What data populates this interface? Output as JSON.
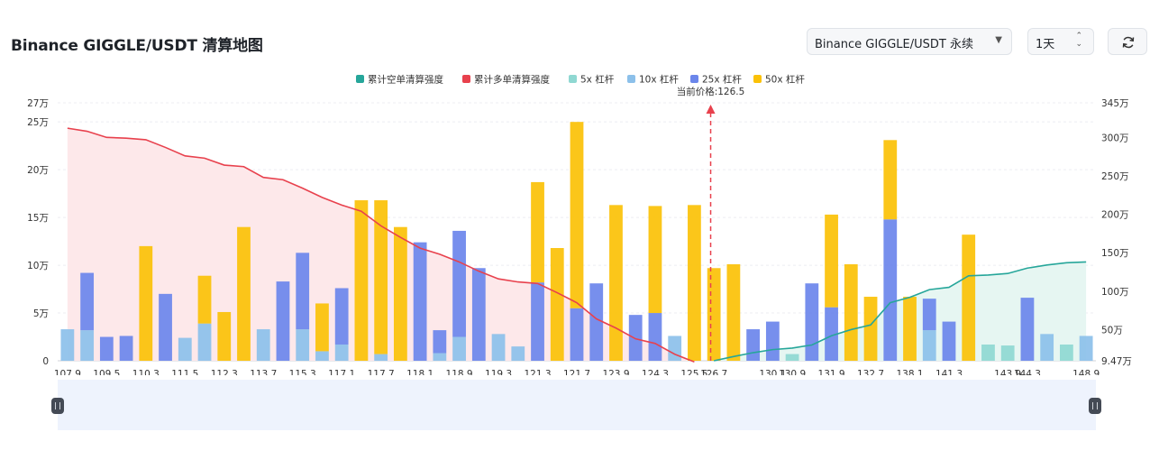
{
  "header": {
    "title": "Binance GIGGLE/USDT 清算地图",
    "pair_select": "Binance GIGGLE/USDT 永续",
    "period_select": "1天",
    "refresh_icon": "refresh-icon"
  },
  "colors": {
    "short_cum": "#26a69a",
    "long_cum": "#e8414d",
    "lev5": "#8fd8d2",
    "lev10": "#8cc0ea",
    "lev25": "#6b86eb",
    "lev50": "#fbc107",
    "long_fill": "#fde8ea",
    "short_fill": "#e6f6f2"
  },
  "chart_data": {
    "type": "bar",
    "current_price_label": "当前价格:126.5",
    "current_price": 126.5,
    "legend": [
      "累计空单清算强度",
      "累计多单清算强度",
      "5x 杠杆",
      "10x 杠杆",
      "25x 杠杆",
      "50x 杠杆"
    ],
    "x_tick_labels": [
      "107.9",
      "109.5",
      "110.3",
      "111.5",
      "112.3",
      "113.7",
      "115.3",
      "117.1",
      "117.7",
      "118.1",
      "118.9",
      "119.3",
      "121.3",
      "121.7",
      "123.9",
      "124.3",
      "125.5",
      "126.7",
      "130.1",
      "130.9",
      "131.9",
      "132.7",
      "138.1",
      "141.3",
      "143.9",
      "144.3",
      "148.9"
    ],
    "y_left_ticks": [
      "0",
      "5万",
      "10万",
      "15万",
      "20万",
      "25万",
      "27万"
    ],
    "y_left_values": [
      0,
      50000,
      100000,
      150000,
      200000,
      250000,
      270000
    ],
    "y_right_ticks": [
      "9.47万",
      "50万",
      "100万",
      "150万",
      "200万",
      "250万",
      "300万",
      "345万"
    ],
    "y_right_values": [
      94700,
      500000,
      1000000,
      1500000,
      2000000,
      2500000,
      3000000,
      3450000
    ],
    "bars": [
      {
        "x": 107.9,
        "lev5": 0,
        "lev10": 33000,
        "lev25": 0,
        "lev50": 0
      },
      {
        "x": 108.7,
        "lev5": 0,
        "lev10": 32000,
        "lev25": 60000,
        "lev50": 0
      },
      {
        "x": 109.5,
        "lev5": 0,
        "lev10": 0,
        "lev25": 25000,
        "lev50": 0
      },
      {
        "x": 109.9,
        "lev5": 0,
        "lev10": 0,
        "lev25": 26000,
        "lev50": 0
      },
      {
        "x": 110.3,
        "lev5": 0,
        "lev10": 0,
        "lev25": 0,
        "lev50": 120000
      },
      {
        "x": 110.9,
        "lev5": 0,
        "lev10": 0,
        "lev25": 70000,
        "lev50": 0
      },
      {
        "x": 111.5,
        "lev5": 0,
        "lev10": 24000,
        "lev25": 0,
        "lev50": 0
      },
      {
        "x": 111.9,
        "lev5": 0,
        "lev10": 39000,
        "lev25": 0,
        "lev50": 50000
      },
      {
        "x": 112.3,
        "lev5": 0,
        "lev10": 0,
        "lev25": 0,
        "lev50": 51000
      },
      {
        "x": 113.0,
        "lev5": 0,
        "lev10": 0,
        "lev25": 0,
        "lev50": 140000
      },
      {
        "x": 113.7,
        "lev5": 0,
        "lev10": 33000,
        "lev25": 0,
        "lev50": 0
      },
      {
        "x": 114.5,
        "lev5": 0,
        "lev10": 0,
        "lev25": 83000,
        "lev50": 0
      },
      {
        "x": 115.3,
        "lev5": 0,
        "lev10": 33000,
        "lev25": 80000,
        "lev50": 0
      },
      {
        "x": 116.2,
        "lev5": 0,
        "lev10": 10000,
        "lev25": 0,
        "lev50": 50000
      },
      {
        "x": 117.1,
        "lev5": 0,
        "lev10": 17000,
        "lev25": 59000,
        "lev50": 0
      },
      {
        "x": 117.4,
        "lev5": 0,
        "lev10": 0,
        "lev25": 0,
        "lev50": 168000
      },
      {
        "x": 117.7,
        "lev5": 0,
        "lev10": 7000,
        "lev25": 0,
        "lev50": 161000
      },
      {
        "x": 117.9,
        "lev5": 0,
        "lev10": 0,
        "lev25": 0,
        "lev50": 140000
      },
      {
        "x": 118.1,
        "lev5": 0,
        "lev10": 0,
        "lev25": 124000,
        "lev50": 0
      },
      {
        "x": 118.5,
        "lev5": 0,
        "lev10": 8000,
        "lev25": 24000,
        "lev50": 0
      },
      {
        "x": 118.9,
        "lev5": 0,
        "lev10": 25000,
        "lev25": 111000,
        "lev50": 0
      },
      {
        "x": 119.1,
        "lev5": 0,
        "lev10": 0,
        "lev25": 97000,
        "lev50": 0
      },
      {
        "x": 119.3,
        "lev5": 0,
        "lev10": 28000,
        "lev25": 0,
        "lev50": 0
      },
      {
        "x": 120.3,
        "lev5": 0,
        "lev10": 15000,
        "lev25": 0,
        "lev50": 0
      },
      {
        "x": 121.3,
        "lev5": 0,
        "lev10": 0,
        "lev25": 82000,
        "lev50": 105000
      },
      {
        "x": 121.5,
        "lev5": 0,
        "lev10": 0,
        "lev25": 0,
        "lev50": 118000
      },
      {
        "x": 121.7,
        "lev5": 0,
        "lev10": 0,
        "lev25": 55000,
        "lev50": 195000
      },
      {
        "x": 122.8,
        "lev5": 0,
        "lev10": 0,
        "lev25": 81000,
        "lev50": 0
      },
      {
        "x": 123.9,
        "lev5": 0,
        "lev10": 0,
        "lev25": 0,
        "lev50": 163000
      },
      {
        "x": 124.1,
        "lev5": 0,
        "lev10": 0,
        "lev25": 48000,
        "lev50": 0
      },
      {
        "x": 124.3,
        "lev5": 0,
        "lev10": 0,
        "lev25": 50000,
        "lev50": 112000
      },
      {
        "x": 124.9,
        "lev5": 0,
        "lev10": 26000,
        "lev25": 0,
        "lev50": 0
      },
      {
        "x": 125.5,
        "lev5": 0,
        "lev10": 0,
        "lev25": 0,
        "lev50": 163000
      },
      {
        "x": 126.7,
        "lev5": 0,
        "lev10": 0,
        "lev25": 0,
        "lev50": 97000
      },
      {
        "x": 128.4,
        "lev5": 0,
        "lev10": 0,
        "lev25": 0,
        "lev50": 101000
      },
      {
        "x": 129.3,
        "lev5": 0,
        "lev10": 0,
        "lev25": 33000,
        "lev50": 0
      },
      {
        "x": 130.1,
        "lev5": 0,
        "lev10": 0,
        "lev25": 41000,
        "lev50": 0
      },
      {
        "x": 130.9,
        "lev5": 7000,
        "lev10": 0,
        "lev25": 0,
        "lev50": 0
      },
      {
        "x": 131.4,
        "lev5": 0,
        "lev10": 0,
        "lev25": 81000,
        "lev50": 0
      },
      {
        "x": 131.9,
        "lev5": 0,
        "lev10": 0,
        "lev25": 56000,
        "lev50": 97000
      },
      {
        "x": 132.3,
        "lev5": 0,
        "lev10": 0,
        "lev25": 0,
        "lev50": 101000
      },
      {
        "x": 132.7,
        "lev5": 0,
        "lev10": 0,
        "lev25": 0,
        "lev50": 67000
      },
      {
        "x": 135.4,
        "lev5": 0,
        "lev10": 0,
        "lev25": 148000,
        "lev50": 83000
      },
      {
        "x": 138.1,
        "lev5": 0,
        "lev10": 0,
        "lev25": 0,
        "lev50": 67000
      },
      {
        "x": 139.7,
        "lev5": 0,
        "lev10": 32000,
        "lev25": 33000,
        "lev50": 0
      },
      {
        "x": 141.3,
        "lev5": 0,
        "lev10": 0,
        "lev25": 41000,
        "lev50": 0
      },
      {
        "x": 142.6,
        "lev5": 0,
        "lev10": 0,
        "lev25": 0,
        "lev50": 132000
      },
      {
        "x": 143.2,
        "lev5": 17000,
        "lev10": 0,
        "lev25": 0,
        "lev50": 0
      },
      {
        "x": 143.9,
        "lev5": 16000,
        "lev10": 0,
        "lev25": 0,
        "lev50": 0
      },
      {
        "x": 144.3,
        "lev5": 0,
        "lev10": 0,
        "lev25": 66000,
        "lev50": 0
      },
      {
        "x": 146.6,
        "lev5": 0,
        "lev10": 28000,
        "lev25": 0,
        "lev50": 0
      },
      {
        "x": 148.3,
        "lev5": 17000,
        "lev10": 0,
        "lev25": 0,
        "lev50": 0
      },
      {
        "x": 148.9,
        "lev5": 0,
        "lev10": 26000,
        "lev25": 0,
        "lev50": 0
      }
    ],
    "long_cumulative": [
      [
        107.9,
        3120000
      ],
      [
        108.7,
        3080000
      ],
      [
        109.5,
        3000000
      ],
      [
        109.9,
        2990000
      ],
      [
        110.3,
        2970000
      ],
      [
        110.9,
        2870000
      ],
      [
        111.5,
        2760000
      ],
      [
        111.9,
        2730000
      ],
      [
        112.3,
        2640000
      ],
      [
        113.0,
        2620000
      ],
      [
        113.7,
        2480000
      ],
      [
        114.5,
        2450000
      ],
      [
        115.3,
        2340000
      ],
      [
        116.2,
        2220000
      ],
      [
        117.1,
        2120000
      ],
      [
        117.4,
        2040000
      ],
      [
        117.7,
        1850000
      ],
      [
        117.9,
        1700000
      ],
      [
        118.1,
        1560000
      ],
      [
        118.5,
        1480000
      ],
      [
        118.9,
        1380000
      ],
      [
        119.1,
        1260000
      ],
      [
        119.3,
        1160000
      ],
      [
        120.3,
        1120000
      ],
      [
        121.3,
        1100000
      ],
      [
        121.5,
        980000
      ],
      [
        121.7,
        850000
      ],
      [
        122.8,
        640000
      ],
      [
        123.9,
        520000
      ],
      [
        124.1,
        380000
      ],
      [
        124.3,
        320000
      ],
      [
        124.9,
        180000
      ],
      [
        125.5,
        80000
      ]
    ],
    "short_cumulative": [
      [
        126.7,
        94700
      ],
      [
        128.4,
        150000
      ],
      [
        129.3,
        200000
      ],
      [
        130.1,
        240000
      ],
      [
        130.9,
        260000
      ],
      [
        131.4,
        300000
      ],
      [
        131.9,
        420000
      ],
      [
        132.3,
        500000
      ],
      [
        132.7,
        560000
      ],
      [
        135.4,
        850000
      ],
      [
        138.1,
        920000
      ],
      [
        139.7,
        1020000
      ],
      [
        141.3,
        1050000
      ],
      [
        142.6,
        1200000
      ],
      [
        143.2,
        1210000
      ],
      [
        143.9,
        1230000
      ],
      [
        144.3,
        1300000
      ],
      [
        146.6,
        1340000
      ],
      [
        148.3,
        1370000
      ],
      [
        148.9,
        1380000
      ]
    ]
  }
}
